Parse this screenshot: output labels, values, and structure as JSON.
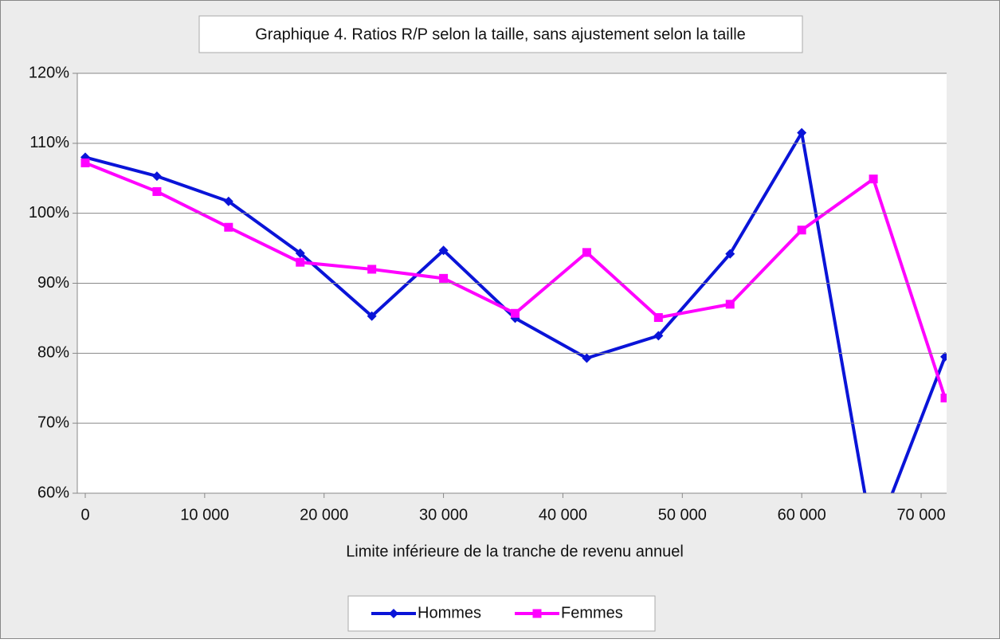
{
  "chart_data": {
    "type": "line",
    "title": "Graphique 4. Ratios R/P selon la taille, sans ajustement selon la taille",
    "x_label": "Limite inférieure de la tranche de revenu annuel",
    "x": [
      0,
      6000,
      12000,
      18000,
      24000,
      30000,
      36000,
      42000,
      48000,
      54000,
      60000,
      66000,
      72000
    ],
    "series": [
      {
        "name": "Hommes",
        "color": "#0a14d8",
        "marker": "diamond",
        "values": [
          108,
          105.3,
          101.7,
          94.3,
          85.3,
          94.7,
          85,
          79.3,
          82.5,
          94.2,
          111.5,
          53,
          79.5
        ]
      },
      {
        "name": "Femmes",
        "color": "#ff00ff",
        "marker": "square",
        "values": [
          107.2,
          103.1,
          98,
          93,
          92,
          90.7,
          85.7,
          94.4,
          85.1,
          87,
          97.6,
          104.9,
          73.6
        ]
      }
    ],
    "xlim": [
      0,
      72000
    ],
    "xticks": [
      0,
      {
        "value": 10000,
        "label": "10 000"
      },
      {
        "value": 20000,
        "label": "20 000"
      },
      {
        "value": 30000,
        "label": "30 000"
      },
      {
        "value": 40000,
        "label": "40 000"
      },
      {
        "value": 50000,
        "label": "50 000"
      },
      {
        "value": 60000,
        "label": "60 000"
      },
      {
        "value": 70000,
        "label": "70 000"
      }
    ],
    "ylim": [
      60,
      120
    ],
    "yticks": [
      {
        "value": 60,
        "label": "60%"
      },
      {
        "value": 70,
        "label": "70%"
      },
      {
        "value": 80,
        "label": "80%"
      },
      {
        "value": 90,
        "label": "90%"
      },
      {
        "value": 100,
        "label": "100%"
      },
      {
        "value": 110,
        "label": "110%"
      },
      {
        "value": 120,
        "label": "120%"
      }
    ],
    "grid": true,
    "legend": "bottom"
  }
}
